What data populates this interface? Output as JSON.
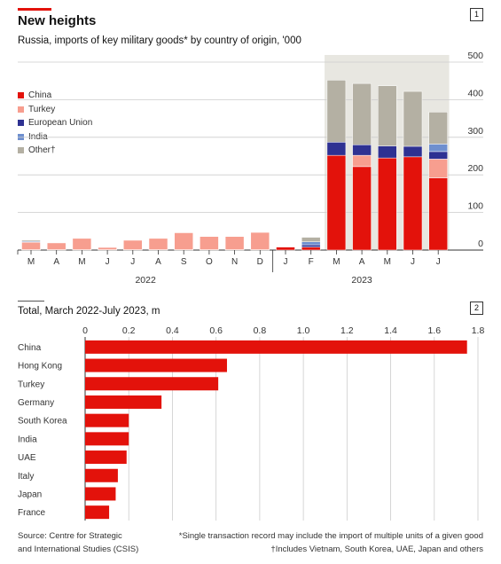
{
  "header": {
    "title": "New heights",
    "subtitle": "Russia, imports of key military goods* by country of origin, '000",
    "panel1": "1",
    "panel2": "2"
  },
  "colors": {
    "China": "#e3120b",
    "Turkey": "#f79e8f",
    "European Union": "#2e3192",
    "India": "#6e8fcf",
    "Other": "#b4b0a3"
  },
  "chart_data": [
    {
      "type": "bar",
      "stacked": true,
      "title": "New heights",
      "subtitle": "Russia, imports of key military goods* by country of origin, '000",
      "categories": [
        "M",
        "A",
        "M",
        "J",
        "J",
        "A",
        "S",
        "O",
        "N",
        "D",
        "J",
        "F",
        "M",
        "A",
        "M",
        "J",
        "J"
      ],
      "year_labels": [
        "2022",
        "2023"
      ],
      "ylim": [
        0,
        500
      ],
      "yticks": [
        0,
        100,
        200,
        300,
        400,
        500
      ],
      "legend": [
        "China",
        "Turkey",
        "European Union",
        "India",
        "Other†"
      ],
      "legend_position": "left",
      "series": [
        {
          "name": "China",
          "values": [
            1,
            1,
            1,
            1,
            1,
            1,
            1,
            1,
            1,
            1,
            8,
            8,
            252,
            222,
            245,
            248,
            192
          ]
        },
        {
          "name": "Turkey",
          "values": [
            20,
            18,
            30,
            6,
            25,
            30,
            45,
            35,
            35,
            46,
            0,
            0,
            0,
            30,
            0,
            0,
            50
          ]
        },
        {
          "name": "European Union",
          "values": [
            0,
            0,
            0,
            0,
            0,
            0,
            0,
            0,
            0,
            0,
            0,
            6,
            35,
            28,
            32,
            28,
            20
          ]
        },
        {
          "name": "India",
          "values": [
            2,
            0,
            0,
            0,
            0,
            0,
            0,
            0,
            0,
            0,
            0,
            8,
            0,
            0,
            0,
            0,
            20
          ]
        },
        {
          "name": "Other†",
          "values": [
            3,
            0,
            0,
            0,
            0,
            0,
            0,
            0,
            0,
            0,
            0,
            12,
            165,
            163,
            160,
            146,
            85
          ]
        }
      ]
    },
    {
      "type": "bar",
      "orientation": "horizontal",
      "title": "Total, March 2022-July 2023, m",
      "categories": [
        "China",
        "Hong Kong",
        "Turkey",
        "Germany",
        "South Korea",
        "India",
        "UAE",
        "Italy",
        "Japan",
        "France"
      ],
      "values": [
        1.75,
        0.65,
        0.61,
        0.35,
        0.2,
        0.2,
        0.19,
        0.15,
        0.14,
        0.11
      ],
      "xlim": [
        0,
        1.8
      ],
      "xticks": [
        "0",
        "0.2",
        "0.4",
        "0.6",
        "0.8",
        "1.0",
        "1.2",
        "1.4",
        "1.6",
        "1.8"
      ]
    }
  ],
  "footer": {
    "source_line1": "Source: Centre for Strategic",
    "source_line2": "and International Studies (CSIS)",
    "note_line1": "*Single transaction record may include the import of multiple units of a given good",
    "note_line2": "†Includes Vietnam, South Korea, UAE, Japan and others"
  }
}
